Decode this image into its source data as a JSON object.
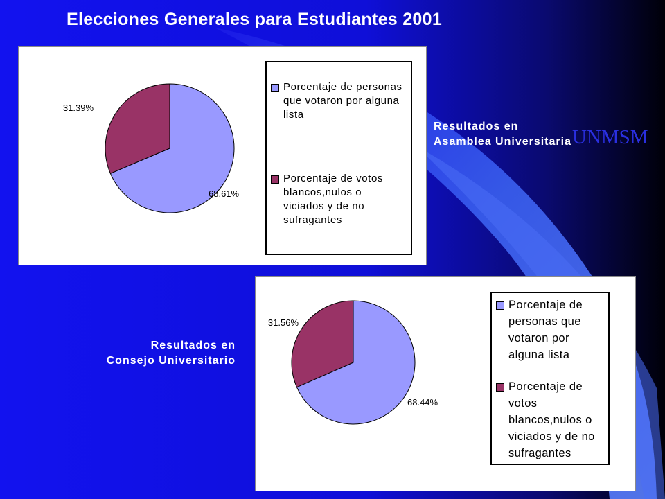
{
  "slide": {
    "title": "Elecciones Generales para Estudiantes 2001",
    "watermark": "UNMSM",
    "colors": {
      "background": "#1010e8",
      "dark_corner": "#000000",
      "accent_band": "#3f5ef0"
    }
  },
  "chart_data": [
    {
      "type": "pie",
      "caption": {
        "line1": "Resultados en",
        "line2": "Asamblea Universitaria"
      },
      "slices": [
        {
          "label": "Porcentaje de personas que votaron por alguna lista",
          "value": 68.61,
          "value_label": "68.61%",
          "color": "#9999ff"
        },
        {
          "label": "Porcentaje de votos blancos,nulos o viciados y de no sufragantes",
          "value": 31.39,
          "value_label": "31.39%",
          "color": "#993366"
        }
      ],
      "legend": {
        "placement": "right",
        "lines": [
          [
            "Porcentaje de personas",
            "que votaron por alguna",
            "lista"
          ],
          [
            "Porcentaje de votos",
            "blancos,nulos o",
            "viciados y de no",
            "sufragantes"
          ]
        ]
      }
    },
    {
      "type": "pie",
      "caption": {
        "line1": "Resultados en",
        "line2": "Consejo Universitario"
      },
      "slices": [
        {
          "label": "Porcentaje de personas que votaron por alguna lista",
          "value": 68.44,
          "value_label": "68.44%",
          "color": "#9999ff"
        },
        {
          "label": "Porcentaje de votos blancos,nulos o viciados y de no sufragantes",
          "value": 31.56,
          "value_label": "31.56%",
          "color": "#993366"
        }
      ],
      "legend": {
        "placement": "right",
        "lines": [
          [
            "Porcentaje de",
            "personas que",
            "votaron por",
            "alguna lista"
          ],
          [
            "Porcentaje de",
            "votos",
            "blancos,nulos o",
            "viciados y de no",
            "sufragantes"
          ]
        ]
      }
    }
  ]
}
